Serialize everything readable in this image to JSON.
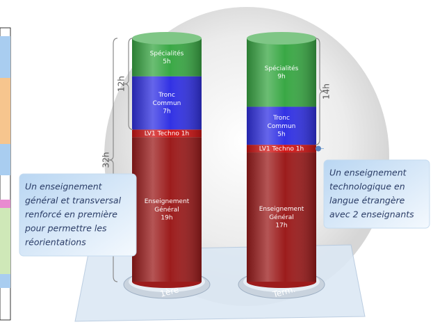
{
  "chart_data": {
    "type": "bar",
    "stacked": true,
    "categories": [
      "1ère",
      "Term."
    ],
    "series": [
      {
        "name": "Enseignement Général",
        "color": "#9c1c1c",
        "values": [
          19,
          17
        ],
        "value_labels": [
          "19h",
          "17h"
        ]
      },
      {
        "name": "LV1 Techno",
        "color": "#d01414",
        "values": [
          1,
          1
        ],
        "value_labels": [
          "1h",
          "1h"
        ]
      },
      {
        "name": "Tronc Commun",
        "color": "#3232e4",
        "values": [
          7,
          5
        ],
        "value_labels": [
          "7h",
          "5h"
        ]
      },
      {
        "name": "Spécialités",
        "color": "#3aa845",
        "values": [
          5,
          9
        ],
        "value_labels": [
          "5h",
          "9h"
        ]
      }
    ],
    "brace_labels": [
      "32h",
      "12h",
      "14h"
    ],
    "callouts": [
      [
        "Un enseignement",
        "général et transversal",
        "renforcé en première",
        "pour permettre les",
        "réorientations"
      ],
      [
        "Un enseignement",
        "technologique en",
        "langue étrangère",
        "avec 2 enseignants"
      ]
    ]
  }
}
